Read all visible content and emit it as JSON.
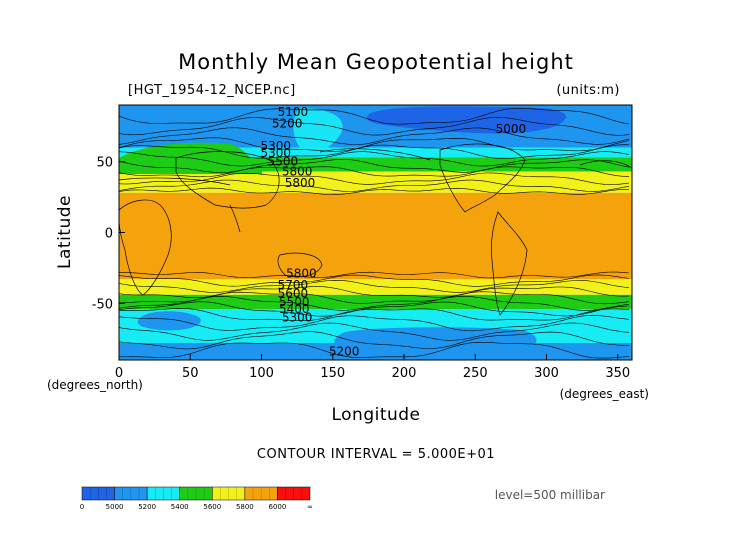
{
  "chart_data": {
    "type": "heatmap",
    "title": "Monthly Mean Geopotential height",
    "file_label": "[HGT_1954-12_NCEP.nc]",
    "units_label": "(units:m)",
    "xlabel": "Longitude",
    "ylabel": "Latitude",
    "x_units_label": "(degrees_east)",
    "y_units_label": "(degrees_north)",
    "xlim": [
      0,
      360
    ],
    "ylim": [
      -90,
      90
    ],
    "x_ticks": [
      "0",
      "50",
      "100",
      "150",
      "200",
      "250",
      "300",
      "350"
    ],
    "x_tick_values": [
      0,
      50,
      100,
      150,
      200,
      250,
      300,
      350
    ],
    "y_ticks": [
      "50",
      "0",
      "-50"
    ],
    "y_tick_values": [
      50,
      0,
      -50
    ],
    "contour_interval_text": "CONTOUR INTERVAL = 5.000E+01",
    "level_text": "level=500 millibar",
    "colorbar": {
      "ticks": [
        "0",
        "5000",
        "5200",
        "5400",
        "5600",
        "5800",
        "6000",
        "∞"
      ],
      "bins": [
        {
          "from": 0,
          "to": 5000,
          "color": "#1e64e6"
        },
        {
          "from": 5000,
          "to": 5200,
          "color": "#1e96f0"
        },
        {
          "from": 5200,
          "to": 5400,
          "color": "#17ecf5"
        },
        {
          "from": 5400,
          "to": 5600,
          "color": "#1ecc16"
        },
        {
          "from": 5600,
          "to": 5800,
          "color": "#f2f21a"
        },
        {
          "from": 5800,
          "to": 6000,
          "color": "#f5a30c"
        },
        {
          "from": 6000,
          "to": 99999,
          "color": "#fa0f0f"
        }
      ]
    },
    "zonal_bands_lat": [
      {
        "lat_top": 90,
        "lat_bottom": 60,
        "value_range": "5000-5200",
        "color": "#1e96f0"
      },
      {
        "lat_top": 60,
        "lat_bottom": 53,
        "value_range": "5200-5400",
        "color": "#17ecf5"
      },
      {
        "lat_top": 53,
        "lat_bottom": 43,
        "value_range": "5400-5600",
        "color": "#1ecc16"
      },
      {
        "lat_top": 43,
        "lat_bottom": 28,
        "value_range": "5600-5800",
        "color": "#f2f21a"
      },
      {
        "lat_top": 28,
        "lat_bottom": -33,
        "value_range": "5800-6000",
        "color": "#f5a30c"
      },
      {
        "lat_top": -33,
        "lat_bottom": -44,
        "value_range": "5600-5800",
        "color": "#f2f21a"
      },
      {
        "lat_top": -44,
        "lat_bottom": -54,
        "value_range": "5400-5600",
        "color": "#1ecc16"
      },
      {
        "lat_top": -54,
        "lat_bottom": -78,
        "value_range": "5200-5400",
        "color": "#17ecf5"
      },
      {
        "lat_top": -78,
        "lat_bottom": -90,
        "value_range": "5000-5200",
        "color": "#1e96f0"
      }
    ],
    "contour_labels": [
      {
        "text": "5100",
        "lon": 122,
        "lat": 85
      },
      {
        "text": "5200",
        "lon": 118,
        "lat": 77
      },
      {
        "text": "5000",
        "lon": 275,
        "lat": 73
      },
      {
        "text": "5300",
        "lon": 110,
        "lat": 61
      },
      {
        "text": "5300",
        "lon": 110,
        "lat": 56
      },
      {
        "text": "5500",
        "lon": 115,
        "lat": 50
      },
      {
        "text": "5800",
        "lon": 125,
        "lat": 43
      },
      {
        "text": "5800",
        "lon": 127,
        "lat": 35
      },
      {
        "text": "5800",
        "lon": 128,
        "lat": -29
      },
      {
        "text": "5700",
        "lon": 122,
        "lat": -37
      },
      {
        "text": "5600",
        "lon": 122,
        "lat": -43
      },
      {
        "text": "5500",
        "lon": 123,
        "lat": -49
      },
      {
        "text": "5400",
        "lon": 123,
        "lat": -54
      },
      {
        "text": "5300",
        "lon": 125,
        "lat": -60
      },
      {
        "text": "5200",
        "lon": 158,
        "lat": -84
      }
    ]
  }
}
